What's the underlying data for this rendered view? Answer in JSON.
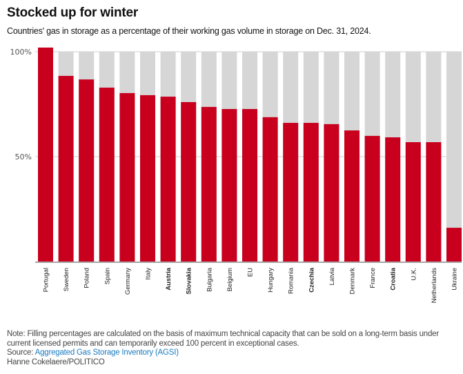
{
  "header": {
    "title": "Stocked up for winter",
    "subtitle": "Countries' gas in storage as a percentage of their working gas volume in storage on Dec. 31, 2024."
  },
  "footer": {
    "note": "Note: Filling percentages are calculated on the basis of maximum technical capacity that can be sold on a long-term basis under current licensed permits and can temporarily exceed 100 percent in exceptional cases.",
    "source_prefix": "Source: ",
    "source_link": "Aggregated Gas Storage Inventory (AGSI)",
    "credit": "Hanne Cokelaere/POLITICO"
  },
  "colors": {
    "fill": "#c8001e",
    "capacity": "#d6d6d6",
    "link": "#1a7bbf",
    "axis": "#888888",
    "grid": "#cccccc"
  },
  "chart_data": {
    "type": "bar",
    "title": "Stocked up for winter",
    "subtitle": "Countries' gas in storage as a percentage of their working gas volume in storage on Dec. 31, 2024.",
    "xlabel": "",
    "ylabel": "",
    "ylim": [
      0,
      100
    ],
    "yticks": [
      {
        "value": 100,
        "label": "100%"
      },
      {
        "value": 50,
        "label": "50%"
      }
    ],
    "grid": true,
    "legend": "none",
    "categories": [
      "Portugal",
      "Sweden",
      "Poland",
      "Spain",
      "Germany",
      "Italy",
      "Austria",
      "Slovakia",
      "Bulgaria",
      "Belgium",
      "EU",
      "Hungary",
      "Romania",
      "Czechia",
      "Latvia",
      "Denmark",
      "France",
      "Croatia",
      "U.K.",
      "Netherlands",
      "Ukraine"
    ],
    "bold_categories": [
      "Austria",
      "Slovakia",
      "Czechia",
      "Croatia"
    ],
    "series": [
      {
        "name": "Gas in storage (%)",
        "values": [
          102,
          88.5,
          86.8,
          82.9,
          80.3,
          79.3,
          78.6,
          76.0,
          73.7,
          72.7,
          72.7,
          68.8,
          66.1,
          66.1,
          65.5,
          62.5,
          59.9,
          59.2,
          56.9,
          56.9,
          16.1
        ]
      },
      {
        "name": "Working gas volume (capacity, %)",
        "values": [
          100,
          100,
          100,
          100,
          100,
          100,
          100,
          100,
          100,
          100,
          100,
          100,
          100,
          100,
          100,
          100,
          100,
          100,
          100,
          100,
          100
        ]
      }
    ]
  }
}
